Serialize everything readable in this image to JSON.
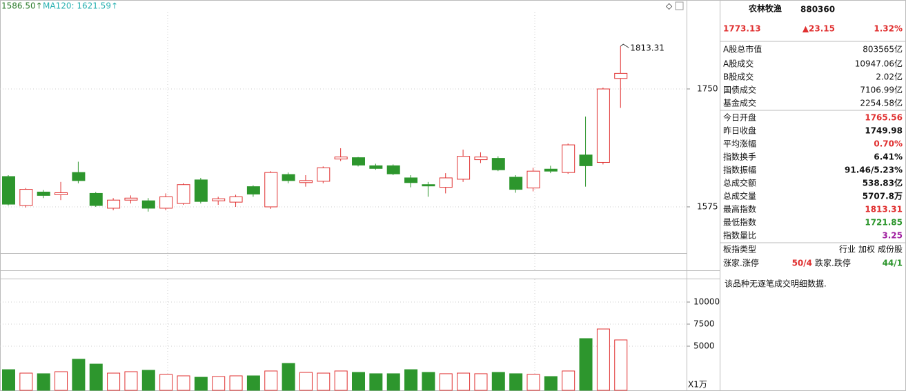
{
  "chart_data": {
    "type": "candlestick",
    "indicators": [
      {
        "label": "1586.50↑",
        "color": "#2a7a2a"
      },
      {
        "label": "MA120: 1621.59↑",
        "color": "#27b0b0"
      }
    ],
    "up_color": "#e03030",
    "down_color": "#2d962d",
    "ylim": [
      1506.4,
      1882
    ],
    "yticks": [
      1575,
      1750
    ],
    "grid": true,
    "open": [
      1620,
      1577,
      1597,
      1593,
      1626,
      1595,
      1573,
      1585,
      1584,
      1573,
      1580,
      1615,
      1584,
      1582,
      1605,
      1575,
      1623,
      1611,
      1613,
      1646,
      1648,
      1636,
      1636,
      1618,
      1608,
      1604,
      1616,
      1645,
      1647,
      1619,
      1603,
      1631,
      1626,
      1652,
      1641,
      1765.56
    ],
    "high": [
      1622,
      1603,
      1600,
      1612,
      1642,
      1597,
      1588,
      1592,
      1588,
      1595,
      1610,
      1618,
      1590,
      1593,
      1607,
      1628,
      1626,
      1622,
      1635,
      1662,
      1649,
      1639,
      1638,
      1622,
      1612,
      1625,
      1660,
      1656,
      1650,
      1622,
      1633,
      1636,
      1669,
      1709,
      1752,
      1813.31
    ],
    "low": [
      1577,
      1574,
      1588,
      1585,
      1610,
      1575,
      1570,
      1580,
      1568,
      1570,
      1578,
      1580,
      1578,
      1575,
      1590,
      1572,
      1610,
      1605,
      1610,
      1643,
      1635,
      1630,
      1622,
      1604,
      1590,
      1595,
      1612,
      1640,
      1628,
      1596,
      1598,
      1625,
      1624,
      1605,
      1638,
      1721.85
    ],
    "close": [
      1579,
      1601,
      1592,
      1596,
      1614,
      1577,
      1585,
      1588,
      1573,
      1590,
      1608,
      1583,
      1587,
      1590,
      1594,
      1626,
      1614,
      1614,
      1633,
      1649,
      1637,
      1632,
      1624,
      1611,
      1606,
      1618,
      1650,
      1649,
      1630,
      1601,
      1628,
      1628,
      1667,
      1636,
      1749.98,
      1773.13
    ],
    "annotations": [
      {
        "text": "1813.31"
      }
    ],
    "volume": {
      "values": [
        2340,
        1950,
        1880,
        2110,
        3520,
        2970,
        1950,
        2110,
        2270,
        1800,
        1640,
        1480,
        1560,
        1640,
        1640,
        2190,
        3050,
        2030,
        1950,
        2190,
        2030,
        1880,
        1880,
        2340,
        2030,
        1880,
        1950,
        1880,
        2030,
        1880,
        1800,
        1560,
        2190,
        5860,
        6950,
        5707.8
      ],
      "ylim": [
        0,
        12580
      ],
      "yticks": [
        5000,
        7500,
        10000
      ],
      "unit_label": "X1万"
    }
  },
  "panel": {
    "title": "农林牧渔",
    "code": "880360",
    "price": "1773.13",
    "change": "▲23.15",
    "change_pct": "1.32%",
    "market": [
      {
        "label": "A股总市值",
        "value": "803565亿"
      },
      {
        "label": "A股成交",
        "value": "10947.06亿"
      },
      {
        "label": "B股成交",
        "value": "2.02亿"
      },
      {
        "label": "国债成交",
        "value": "7106.99亿"
      },
      {
        "label": "基金成交",
        "value": "2254.58亿"
      }
    ],
    "stats": [
      {
        "label": "今日开盘",
        "value": "1765.56",
        "color": "#e03030"
      },
      {
        "label": "昨日收盘",
        "value": "1749.98",
        "color": "#111"
      },
      {
        "label": "平均涨幅",
        "value": "0.70%",
        "color": "#e03030"
      },
      {
        "label": "指数换手",
        "value": "6.41%",
        "color": "#111"
      },
      {
        "label": "指数振幅",
        "value": "91.46/5.23%",
        "color": "#111"
      },
      {
        "label": "总成交额",
        "value": "538.83亿",
        "color": "#111"
      },
      {
        "label": "总成交量",
        "value": "5707.8万",
        "color": "#111"
      },
      {
        "label": "最高指数",
        "value": "1813.31",
        "color": "#e03030"
      },
      {
        "label": "最低指数",
        "value": "1721.85",
        "color": "#2d962d"
      },
      {
        "label": "指数量比",
        "value": "3.25",
        "color": "#a020a0"
      }
    ],
    "type_label": "板指类型",
    "type_values": [
      "行业",
      "加权",
      "成份股"
    ],
    "breadth": {
      "up_label": "涨家.涨停",
      "up_value": "50/4",
      "down_label": "跌家.跌停",
      "down_value": "44/1"
    },
    "note": "该品种无逐笔成交明细数据."
  }
}
